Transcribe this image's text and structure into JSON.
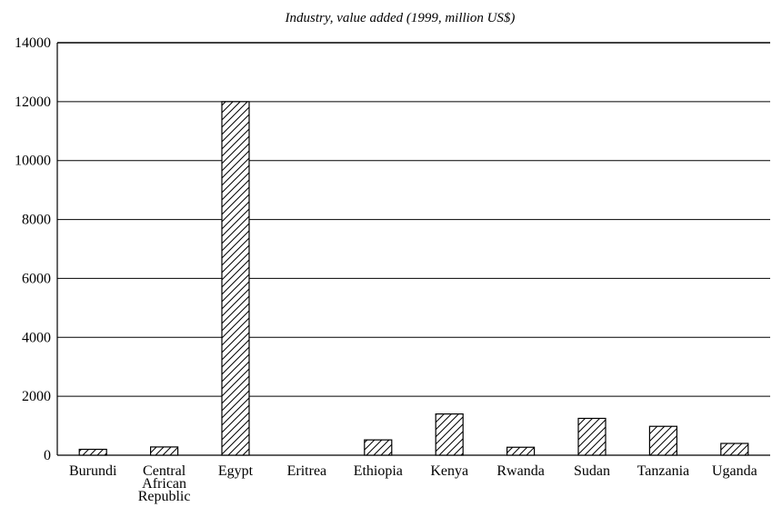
{
  "chart_data": {
    "type": "bar",
    "title": "Industry, value added (1999, million US$)",
    "xlabel": "",
    "ylabel": "",
    "categories": [
      [
        "Burundi"
      ],
      [
        "Central",
        "African",
        "Republic"
      ],
      [
        "Egypt"
      ],
      [
        "Eritrea"
      ],
      [
        "Ethiopia"
      ],
      [
        "Kenya"
      ],
      [
        "Rwanda"
      ],
      [
        "Sudan"
      ],
      [
        "Tanzania"
      ],
      [
        "Uganda"
      ]
    ],
    "values": [
      200,
      280,
      12000,
      0,
      520,
      1400,
      270,
      1250,
      980,
      400
    ],
    "ylim": [
      0,
      14000
    ],
    "yticks": [
      0,
      2000,
      4000,
      6000,
      8000,
      10000,
      12000,
      14000
    ],
    "grid": true,
    "bar_fill": "hatched",
    "colors": {
      "bar_stroke": "#000000",
      "hatch": "#000000",
      "grid": "#000000",
      "background": "#ffffff"
    }
  }
}
